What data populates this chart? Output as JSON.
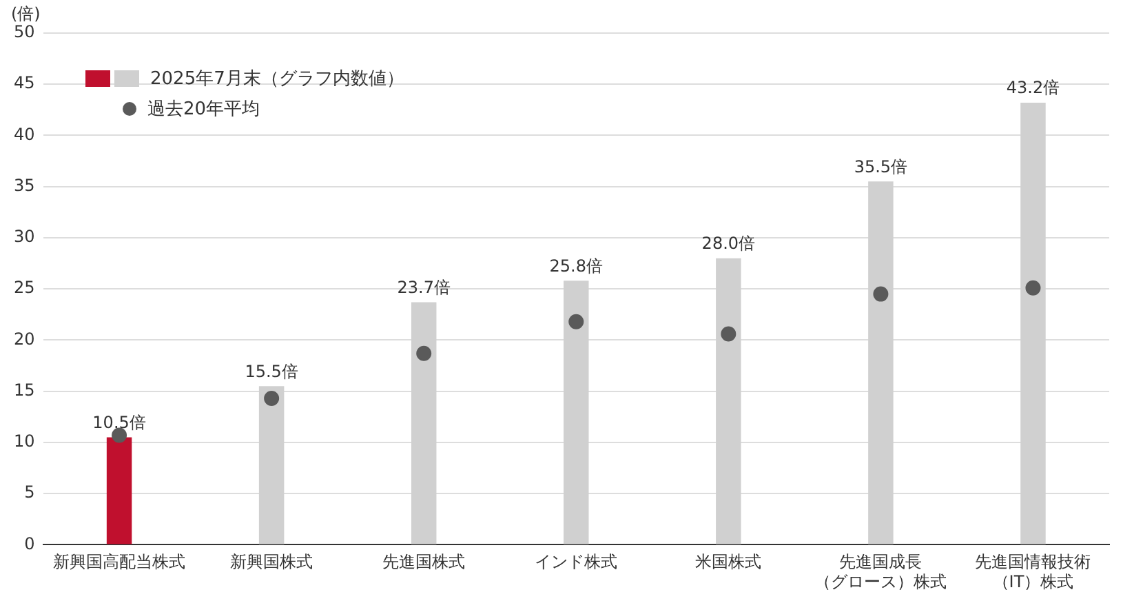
{
  "chart_data": {
    "type": "bar",
    "ylabel": "(倍)",
    "categories": [
      "新興国高配当株式",
      "新興国株式",
      "先進国株式",
      "インド株式",
      "米国株式",
      "先進国成長（グロース）株式",
      "先進国情報技術（IT）株式"
    ],
    "series": [
      {
        "name": "2025年7月末（グラフ内数値）",
        "color": "#d0d0d0",
        "colors": [
          "#c0102e",
          "#d0d0d0",
          "#d0d0d0",
          "#d0d0d0",
          "#d0d0d0",
          "#d0d0d0",
          "#d0d0d0"
        ],
        "values": [
          10.5,
          15.5,
          23.7,
          25.8,
          28.0,
          35.5,
          43.2
        ],
        "value_labels": [
          "10.5倍",
          "15.5倍",
          "23.7倍",
          "25.8倍",
          "28.0倍",
          "35.5倍",
          "43.2倍"
        ]
      },
      {
        "name": "過去20年平均",
        "type": "scatter",
        "color": "#5a5a5a",
        "values": [
          10.7,
          14.3,
          18.7,
          21.8,
          20.6,
          24.5,
          25.1
        ]
      }
    ],
    "ylim": [
      0,
      50
    ],
    "yticks": [
      0,
      5,
      10,
      15,
      20,
      25,
      30,
      35,
      40,
      45,
      50
    ],
    "grid": "y",
    "legend": "top left",
    "marker": "circle"
  }
}
